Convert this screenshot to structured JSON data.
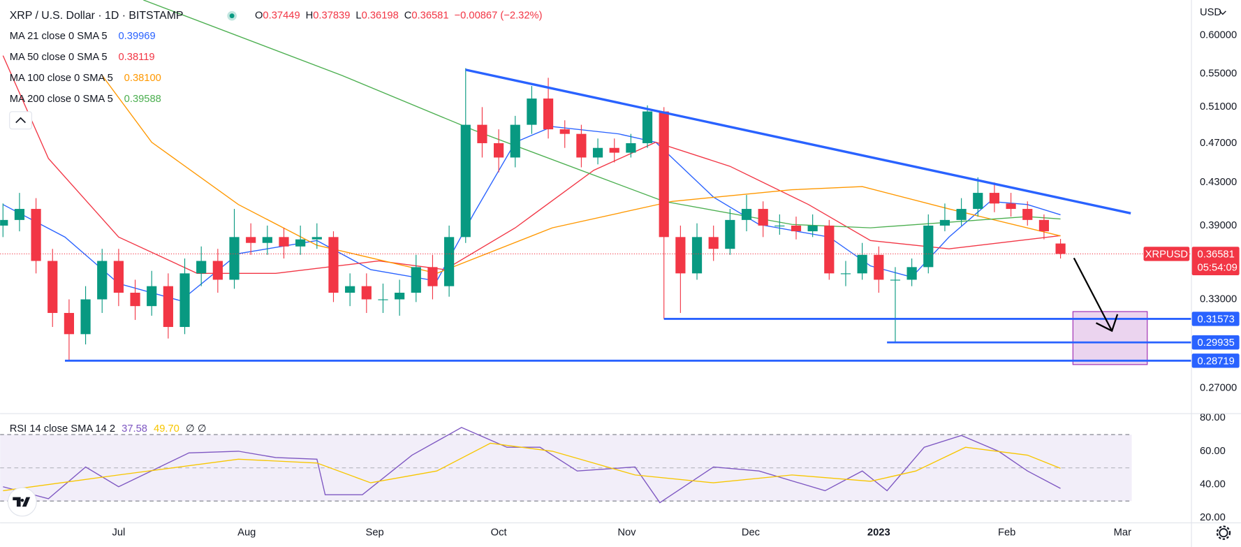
{
  "chart_data": [
    {
      "type": "candlestick",
      "title": "XRP / U.S. Dollar · 1D · BITSTAMP",
      "ohlc_keys": [
        "O",
        "H",
        "L",
        "C"
      ],
      "change": "−0.00867 (−2.32%)",
      "currency": "USD",
      "symbol": "XRPUSD",
      "countdown": "05:54:09",
      "scale": "log",
      "grid": false,
      "up_color": "#089981",
      "down_color": "#f23645",
      "xlim": [
        -28.7,
        259.6
      ],
      "ylim": [
        0.255,
        0.65
      ],
      "xticks": [
        {
          "value": 0,
          "label": "Jul"
        },
        {
          "value": 31,
          "label": "Aug"
        },
        {
          "value": 62,
          "label": "Sep"
        },
        {
          "value": 92,
          "label": "Oct"
        },
        {
          "value": 123,
          "label": "Nov"
        },
        {
          "value": 153,
          "label": "Dec"
        },
        {
          "value": 184,
          "label": "2023"
        },
        {
          "value": 215,
          "label": "Feb"
        },
        {
          "value": 243,
          "label": "Mar"
        }
      ],
      "yticks": [
        {
          "value": 0.27,
          "label": "0.27000"
        },
        {
          "value": 0.33,
          "label": "0.33000"
        },
        {
          "value": 0.39,
          "label": "0.39000"
        },
        {
          "value": 0.43,
          "label": "0.43000"
        },
        {
          "value": 0.47,
          "label": "0.47000"
        },
        {
          "value": 0.51,
          "label": "0.51000"
        },
        {
          "value": 0.55,
          "label": "0.55000"
        },
        {
          "value": 0.6,
          "label": "0.60000"
        }
      ],
      "x": [
        -28,
        -24,
        -20,
        -16,
        -12,
        -8,
        -4,
        0,
        4,
        8,
        12,
        16,
        20,
        24,
        28,
        32,
        36,
        40,
        44,
        48,
        52,
        56,
        60,
        64,
        68,
        72,
        76,
        80,
        84,
        88,
        92,
        96,
        100,
        104,
        108,
        112,
        116,
        120,
        124,
        128,
        132,
        136,
        140,
        144,
        148,
        152,
        156,
        160,
        164,
        168,
        172,
        176,
        180,
        184,
        188,
        192,
        196,
        200,
        204,
        208,
        212,
        216,
        220,
        224,
        228
      ],
      "open": [
        0.39,
        0.395,
        0.405,
        0.36,
        0.32,
        0.305,
        0.33,
        0.36,
        0.335,
        0.325,
        0.34,
        0.31,
        0.35,
        0.36,
        0.345,
        0.38,
        0.375,
        0.38,
        0.372,
        0.378,
        0.38,
        0.335,
        0.34,
        0.33,
        0.33,
        0.335,
        0.355,
        0.34,
        0.38,
        0.49,
        0.47,
        0.455,
        0.49,
        0.52,
        0.485,
        0.48,
        0.455,
        0.465,
        0.46,
        0.47,
        0.505,
        0.38,
        0.35,
        0.38,
        0.37,
        0.395,
        0.405,
        0.39,
        0.39,
        0.385,
        0.39,
        0.35,
        0.35,
        0.365,
        0.345,
        0.345,
        0.355,
        0.39,
        0.395,
        0.405,
        0.42,
        0.41,
        0.405,
        0.395,
        0.37449
      ],
      "high": [
        0.41,
        0.42,
        0.415,
        0.37,
        0.33,
        0.34,
        0.37,
        0.37,
        0.345,
        0.352,
        0.35,
        0.362,
        0.372,
        0.37,
        0.405,
        0.392,
        0.39,
        0.388,
        0.39,
        0.392,
        0.385,
        0.35,
        0.35,
        0.342,
        0.345,
        0.365,
        0.365,
        0.39,
        0.557,
        0.51,
        0.485,
        0.5,
        0.535,
        0.545,
        0.495,
        0.49,
        0.475,
        0.475,
        0.48,
        0.512,
        0.51,
        0.39,
        0.392,
        0.39,
        0.405,
        0.418,
        0.412,
        0.4,
        0.398,
        0.4,
        0.395,
        0.36,
        0.375,
        0.372,
        0.355,
        0.362,
        0.4,
        0.41,
        0.415,
        0.435,
        0.43,
        0.42,
        0.412,
        0.4,
        0.37839
      ],
      "low": [
        0.38,
        0.385,
        0.35,
        0.31,
        0.2872,
        0.298,
        0.32,
        0.325,
        0.315,
        0.318,
        0.302,
        0.305,
        0.34,
        0.335,
        0.338,
        0.365,
        0.365,
        0.362,
        0.365,
        0.37,
        0.328,
        0.325,
        0.32,
        0.32,
        0.318,
        0.328,
        0.33,
        0.332,
        0.375,
        0.455,
        0.44,
        0.445,
        0.48,
        0.475,
        0.465,
        0.445,
        0.448,
        0.45,
        0.455,
        0.465,
        0.3157,
        0.32,
        0.345,
        0.36,
        0.365,
        0.385,
        0.38,
        0.382,
        0.378,
        0.38,
        0.345,
        0.34,
        0.345,
        0.335,
        0.2994,
        0.34,
        0.35,
        0.385,
        0.39,
        0.398,
        0.402,
        0.398,
        0.39,
        0.378,
        0.36198
      ],
      "close": [
        0.395,
        0.405,
        0.36,
        0.32,
        0.305,
        0.33,
        0.36,
        0.335,
        0.325,
        0.34,
        0.31,
        0.35,
        0.36,
        0.345,
        0.38,
        0.375,
        0.38,
        0.372,
        0.378,
        0.38,
        0.335,
        0.34,
        0.33,
        0.33,
        0.335,
        0.355,
        0.34,
        0.38,
        0.49,
        0.47,
        0.455,
        0.49,
        0.52,
        0.485,
        0.48,
        0.455,
        0.465,
        0.46,
        0.47,
        0.505,
        0.38,
        0.35,
        0.38,
        0.37,
        0.395,
        0.405,
        0.39,
        0.39,
        0.385,
        0.39,
        0.35,
        0.35,
        0.365,
        0.345,
        0.345,
        0.355,
        0.39,
        0.395,
        0.405,
        0.42,
        0.41,
        0.405,
        0.395,
        0.385,
        0.36581
      ],
      "series": [
        {
          "name": "MA 21 close 0 SMA 5",
          "color": "#2962ff",
          "last_value_label": "0.39969",
          "x": [
            -28,
            -13,
            0,
            15,
            29,
            48,
            61,
            77,
            86,
            96,
            105,
            121,
            130,
            144,
            155,
            172,
            182,
            192,
            201,
            211,
            220,
            228
          ],
          "values": [
            0.409,
            0.38,
            0.342,
            0.329,
            0.366,
            0.377,
            0.353,
            0.344,
            0.401,
            0.471,
            0.488,
            0.48,
            0.471,
            0.416,
            0.391,
            0.38,
            0.356,
            0.347,
            0.38,
            0.412,
            0.409,
            0.39969
          ]
        },
        {
          "name": "MA 50 close 0 SMA 5",
          "color": "#f23645",
          "last_value_label": "0.38119",
          "x": [
            -28,
            -17,
            0,
            19,
            38,
            63,
            79,
            96,
            115,
            130,
            148,
            167,
            182,
            201,
            228
          ],
          "values": [
            0.573,
            0.454,
            0.38,
            0.35,
            0.35,
            0.36,
            0.353,
            0.388,
            0.442,
            0.471,
            0.446,
            0.409,
            0.377,
            0.37,
            0.38119
          ]
        },
        {
          "name": "MA 100 close 0 SMA 5",
          "color": "#ff9800",
          "last_value_label": "0.38100",
          "x": [
            -4,
            8,
            29,
            48,
            77,
            105,
            134,
            163,
            180,
            201,
            228
          ],
          "values": [
            0.548,
            0.471,
            0.409,
            0.373,
            0.35,
            0.388,
            0.412,
            0.423,
            0.426,
            0.405,
            0.381
          ]
        },
        {
          "name": "MA 200 close 0 SMA 5",
          "color": "#4caf50",
          "last_value_label": "0.39588",
          "x": [
            6,
            54,
            86,
            132,
            163,
            182,
            220,
            228
          ],
          "values": [
            0.65,
            0.548,
            0.484,
            0.412,
            0.391,
            0.388,
            0.398,
            0.39588
          ]
        }
      ],
      "trendline": {
        "color": "#2962ff",
        "x": [
          84,
          245
        ],
        "values": [
          0.555,
          0.401
        ]
      },
      "levels": [
        {
          "value": 0.31573,
          "x": 132
        },
        {
          "value": 0.29935,
          "x": 186
        },
        {
          "value": 0.28719,
          "x": -13
        }
      ],
      "target_zone": {
        "x": [
          231,
          249
        ],
        "values": [
          0.321,
          0.2847
        ]
      }
    },
    {
      "type": "line",
      "title": "RSI 14 close SMA 14 2",
      "suffix": "∅ ∅",
      "xlim": [
        -28.7,
        259.6
      ],
      "ylim": [
        17.1,
        82.4
      ],
      "yticks": [
        {
          "value": 20,
          "label": "20.00"
        },
        {
          "value": 40,
          "label": "40.00"
        },
        {
          "value": 60,
          "label": "60.00"
        },
        {
          "value": 80,
          "label": "80.00"
        }
      ],
      "bands": [
        70,
        50,
        30
      ],
      "series": [
        {
          "color": "#7e57c2",
          "last_value_label": "37.58",
          "x": [
            -28,
            -17,
            -8,
            0,
            17,
            29,
            38,
            48,
            50,
            59,
            71,
            83,
            94,
            102,
            111,
            125,
            131,
            144,
            155,
            171,
            180,
            186,
            195,
            204,
            213,
            220,
            228
          ],
          "values": [
            38.6,
            31.4,
            50.5,
            38.6,
            59,
            60,
            56.2,
            55.2,
            33.8,
            33.8,
            57.6,
            74.3,
            62.4,
            62.4,
            48.1,
            50.5,
            29,
            50.5,
            48.1,
            36.2,
            48.1,
            36.2,
            62.4,
            69.5,
            60,
            48.1,
            37.58
          ]
        },
        {
          "color": "#f7c600",
          "last_value_label": "49.70",
          "x": [
            -28,
            0,
            29,
            48,
            61,
            77,
            90,
            105,
            125,
            144,
            163,
            182,
            193,
            205,
            220,
            228
          ],
          "values": [
            36.2,
            45.7,
            55.2,
            52.9,
            41,
            48.1,
            64.8,
            60,
            45.7,
            41,
            45.7,
            41.9,
            48.1,
            62.4,
            57.6,
            49.7
          ]
        }
      ]
    }
  ]
}
